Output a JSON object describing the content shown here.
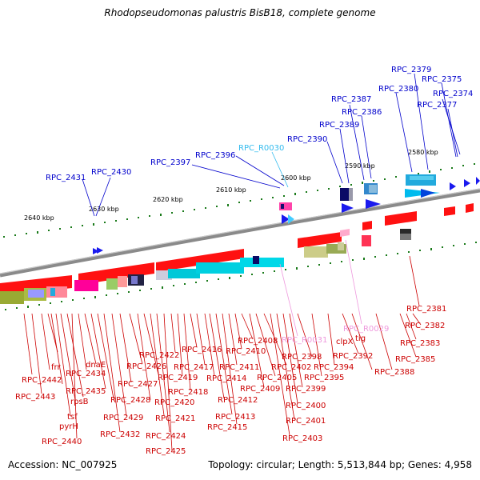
{
  "title": "Rhodopseudomonas palustris BisB18, complete genome",
  "footer": {
    "accession": "Accession: NC_007925",
    "topology": "Topology: circular; Length: 5,513,844 bp; Genes: 4,958"
  },
  "colors": {
    "forward_label": "#0000cc",
    "reverse_label": "#cc0000",
    "rna_label": "#33bbee",
    "trna_label": "#ee99dd",
    "backbone": "#888888",
    "tick": "#006600"
  },
  "scale_labels": [
    "2640 kbp",
    "2630 kbp",
    "2620 kbp",
    "2610 kbp",
    "2600 kbp",
    "2590 kbp",
    "2580 kbp"
  ],
  "top_genes": [
    "RPC_2431",
    "RPC_2430",
    "RPC_2397",
    "RPC_2396",
    "RPC_R0030",
    "RPC_2390",
    "RPC_2389",
    "RPC_2387",
    "RPC_2386",
    "RPC_2380",
    "RPC_2379",
    "RPC_2375",
    "RPC_2374",
    "RPC_2377"
  ],
  "bottom_genes": [
    "RPC_2381",
    "RPC_2382",
    "RPC_2383",
    "RPC_2385",
    "RPC_2388",
    "RPC_R0029",
    "tig",
    "clpX",
    "RPC_2392",
    "RPC_2394",
    "RPC_2395",
    "RPC_2398",
    "RPC_2399",
    "RPC_2400",
    "RPC_2401",
    "RPC_2403",
    "RPC_R0031",
    "RPC_2402",
    "RPC_2405",
    "RPC_2408",
    "RPC_2409",
    "RPC_2410",
    "RPC_2411",
    "RPC_2414",
    "RPC_2412",
    "RPC_2413",
    "RPC_2415",
    "RPC_2416",
    "RPC_2417",
    "RPC_2418",
    "RPC_2419",
    "RPC_2420",
    "RPC_2421",
    "RPC_2422",
    "RPC_2424",
    "RPC_2425",
    "RPC_2426",
    "RPC_2427",
    "RPC_2428",
    "RPC_2429",
    "RPC_2432",
    "dnaE",
    "RPC_2434",
    "frr",
    "RPC_2435",
    "rpsB",
    "tsf",
    "pyrH",
    "RPC_2440",
    "RPC_2442",
    "RPC_2443"
  ]
}
